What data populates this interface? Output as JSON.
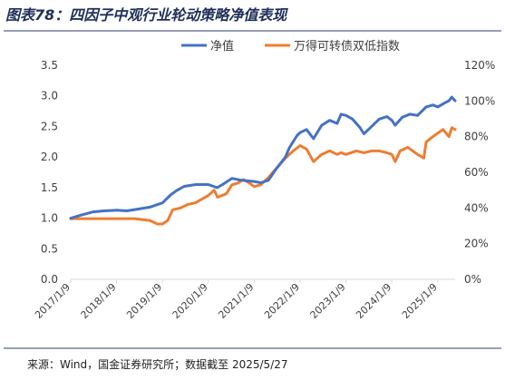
{
  "chart_data": {
    "type": "line",
    "title": "图表78：四因子中观行业轮动策略净值表现",
    "source": "来源：Wind，国金证券研究所；数据截至 2025/5/27",
    "x_type": "date",
    "x_ticks": [
      "2017/1/9",
      "2018/1/9",
      "2019/1/9",
      "2020/1/9",
      "2021/1/9",
      "2022/1/9",
      "2023/1/9",
      "2024/1/9",
      "2025/1/9"
    ],
    "x_range": [
      "2017/1/9",
      "2025/5/27"
    ],
    "y_left": {
      "range": [
        0,
        3.5
      ],
      "ticks": [
        "0.0",
        "0.5",
        "1.0",
        "1.5",
        "2.0",
        "2.5",
        "3.0",
        "3.5"
      ]
    },
    "y_right": {
      "range": [
        0,
        120
      ],
      "ticks": [
        "0%",
        "20%",
        "40%",
        "60%",
        "80%",
        "100%",
        "120%"
      ]
    },
    "grid": false,
    "legend_position": "top",
    "series": [
      {
        "name": "净值",
        "axis": "left",
        "color": "#4472c4",
        "points": [
          [
            "2017/1/9",
            1.0
          ],
          [
            "2017/4/1",
            1.05
          ],
          [
            "2017/7/1",
            1.1
          ],
          [
            "2017/10/1",
            1.12
          ],
          [
            "2018/1/9",
            1.13
          ],
          [
            "2018/4/1",
            1.12
          ],
          [
            "2018/7/1",
            1.15
          ],
          [
            "2018/10/1",
            1.18
          ],
          [
            "2019/1/9",
            1.25
          ],
          [
            "2019/3/15",
            1.38
          ],
          [
            "2019/5/1",
            1.45
          ],
          [
            "2019/7/1",
            1.52
          ],
          [
            "2019/10/1",
            1.55
          ],
          [
            "2020/1/9",
            1.55
          ],
          [
            "2020/3/20",
            1.5
          ],
          [
            "2020/5/1",
            1.55
          ],
          [
            "2020/7/15",
            1.65
          ],
          [
            "2020/10/1",
            1.62
          ],
          [
            "2021/1/9",
            1.6
          ],
          [
            "2021/3/1",
            1.58
          ],
          [
            "2021/5/1",
            1.62
          ],
          [
            "2021/7/1",
            1.8
          ],
          [
            "2021/9/15",
            2.0
          ],
          [
            "2021/10/15",
            2.15
          ],
          [
            "2021/12/15",
            2.35
          ],
          [
            "2022/1/9",
            2.4
          ],
          [
            "2022/3/1",
            2.45
          ],
          [
            "2022/4/26",
            2.3
          ],
          [
            "2022/6/30",
            2.52
          ],
          [
            "2022/9/1",
            2.6
          ],
          [
            "2022/10/31",
            2.55
          ],
          [
            "2022/12/1",
            2.7
          ],
          [
            "2023/1/9",
            2.68
          ],
          [
            "2023/3/1",
            2.62
          ],
          [
            "2023/5/1",
            2.48
          ],
          [
            "2023/6/1",
            2.38
          ],
          [
            "2023/8/1",
            2.5
          ],
          [
            "2023/10/1",
            2.62
          ],
          [
            "2023/12/1",
            2.66
          ],
          [
            "2024/1/9",
            2.6
          ],
          [
            "2024/2/5",
            2.52
          ],
          [
            "2024/4/1",
            2.65
          ],
          [
            "2024/6/1",
            2.7
          ],
          [
            "2024/8/1",
            2.68
          ],
          [
            "2024/10/8",
            2.82
          ],
          [
            "2024/12/1",
            2.85
          ],
          [
            "2025/1/9",
            2.82
          ],
          [
            "2025/3/1",
            2.88
          ],
          [
            "2025/4/8",
            2.92
          ],
          [
            "2025/4/30",
            2.98
          ],
          [
            "2025/5/27",
            2.92
          ]
        ]
      },
      {
        "name": "万得可转债双低指数",
        "axis": "right",
        "color": "#ed7d31",
        "points": [
          [
            "2017/1/9",
            34
          ],
          [
            "2017/6/1",
            34
          ],
          [
            "2017/12/1",
            34
          ],
          [
            "2018/1/9",
            34
          ],
          [
            "2018/6/1",
            34
          ],
          [
            "2018/10/1",
            33
          ],
          [
            "2018/12/1",
            31
          ],
          [
            "2019/1/9",
            31
          ],
          [
            "2019/2/20",
            33
          ],
          [
            "2019/4/1",
            39
          ],
          [
            "2019/6/1",
            40
          ],
          [
            "2019/8/1",
            42
          ],
          [
            "2019/10/1",
            43
          ],
          [
            "2020/1/9",
            47
          ],
          [
            "2020/2/25",
            50
          ],
          [
            "2020/3/23",
            46
          ],
          [
            "2020/6/1",
            48
          ],
          [
            "2020/7/15",
            53
          ],
          [
            "2020/9/1",
            54
          ],
          [
            "2020/10/15",
            56
          ],
          [
            "2020/12/1",
            54
          ],
          [
            "2021/1/9",
            52
          ],
          [
            "2021/3/1",
            53
          ],
          [
            "2021/5/1",
            57
          ],
          [
            "2021/7/1",
            62
          ],
          [
            "2021/9/15",
            68
          ],
          [
            "2021/11/15",
            72
          ],
          [
            "2022/1/9",
            75
          ],
          [
            "2022/3/1",
            73
          ],
          [
            "2022/4/26",
            66
          ],
          [
            "2022/6/30",
            70
          ],
          [
            "2022/9/1",
            72
          ],
          [
            "2022/10/31",
            70
          ],
          [
            "2022/12/1",
            71
          ],
          [
            "2023/1/9",
            70
          ],
          [
            "2023/4/1",
            72
          ],
          [
            "2023/6/1",
            71
          ],
          [
            "2023/8/1",
            72
          ],
          [
            "2023/10/1",
            72
          ],
          [
            "2023/12/1",
            71
          ],
          [
            "2024/1/9",
            70
          ],
          [
            "2024/2/5",
            66
          ],
          [
            "2024/3/15",
            72
          ],
          [
            "2024/5/15",
            74
          ],
          [
            "2024/8/1",
            70
          ],
          [
            "2024/9/20",
            68
          ],
          [
            "2024/10/8",
            77
          ],
          [
            "2024/12/1",
            80
          ],
          [
            "2025/1/9",
            82
          ],
          [
            "2025/2/20",
            84
          ],
          [
            "2025/4/8",
            80
          ],
          [
            "2025/4/30",
            85
          ],
          [
            "2025/5/27",
            84
          ]
        ]
      }
    ]
  }
}
